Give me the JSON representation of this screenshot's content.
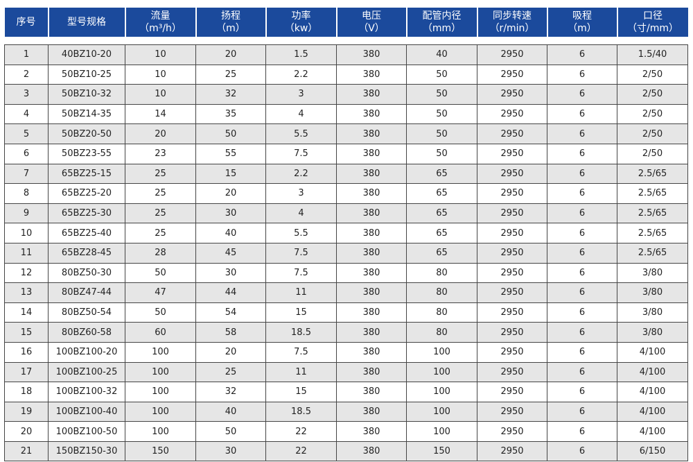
{
  "headers": [
    {
      "line1": "序号",
      "line2": ""
    },
    {
      "line1": "型号规格",
      "line2": ""
    },
    {
      "line1": "流量",
      "line2": "（m³/h）"
    },
    {
      "line1": "扬程",
      "line2": "（m）"
    },
    {
      "line1": "功率",
      "line2": "（kw）"
    },
    {
      "line1": "电压",
      "line2": "（V）"
    },
    {
      "line1": "配管内径",
      "line2": "（mm）"
    },
    {
      "line1": "同步转速",
      "line2": "（r/min）"
    },
    {
      "line1": "吸程",
      "line2": "（m）"
    },
    {
      "line1": "口径",
      "line2": "（寸/mm）"
    }
  ],
  "rows": [
    [
      "1",
      "40BZ10-20",
      "10",
      "20",
      "1.5",
      "380",
      "40",
      "2950",
      "6",
      "1.5/40"
    ],
    [
      "2",
      "50BZ10-25",
      "10",
      "25",
      "2.2",
      "380",
      "50",
      "2950",
      "6",
      "2/50"
    ],
    [
      "3",
      "50BZ10-32",
      "10",
      "32",
      "3",
      "380",
      "50",
      "2950",
      "6",
      "2/50"
    ],
    [
      "4",
      "50BZ14-35",
      "14",
      "35",
      "4",
      "380",
      "50",
      "2950",
      "6",
      "2/50"
    ],
    [
      "5",
      "50BZ20-50",
      "20",
      "50",
      "5.5",
      "380",
      "50",
      "2950",
      "6",
      "2/50"
    ],
    [
      "6",
      "50BZ23-55",
      "23",
      "55",
      "7.5",
      "380",
      "50",
      "2950",
      "6",
      "2/50"
    ],
    [
      "7",
      "65BZ25-15",
      "25",
      "15",
      "2.2",
      "380",
      "65",
      "2950",
      "6",
      "2.5/65"
    ],
    [
      "8",
      "65BZ25-20",
      "25",
      "20",
      "3",
      "380",
      "65",
      "2950",
      "6",
      "2.5/65"
    ],
    [
      "9",
      "65BZ25-30",
      "25",
      "30",
      "4",
      "380",
      "65",
      "2950",
      "6",
      "2.5/65"
    ],
    [
      "10",
      "65BZ25-40",
      "25",
      "40",
      "5.5",
      "380",
      "65",
      "2950",
      "6",
      "2.5/65"
    ],
    [
      "11",
      "65BZ28-45",
      "28",
      "45",
      "7.5",
      "380",
      "65",
      "2950",
      "6",
      "2.5/65"
    ],
    [
      "12",
      "80BZ50-30",
      "50",
      "30",
      "7.5",
      "380",
      "80",
      "2950",
      "6",
      "3/80"
    ],
    [
      "13",
      "80BZ47-44",
      "47",
      "44",
      "11",
      "380",
      "80",
      "2950",
      "6",
      "3/80"
    ],
    [
      "14",
      "80BZ50-54",
      "50",
      "54",
      "15",
      "380",
      "80",
      "2950",
      "6",
      "3/80"
    ],
    [
      "15",
      "80BZ60-58",
      "60",
      "58",
      "18.5",
      "380",
      "80",
      "2950",
      "6",
      "3/80"
    ],
    [
      "16",
      "100BZ100-20",
      "100",
      "20",
      "7.5",
      "380",
      "100",
      "2950",
      "6",
      "4/100"
    ],
    [
      "17",
      "100BZ100-25",
      "100",
      "25",
      "11",
      "380",
      "100",
      "2950",
      "6",
      "4/100"
    ],
    [
      "18",
      "100BZ100-32",
      "100",
      "32",
      "15",
      "380",
      "100",
      "2950",
      "6",
      "4/100"
    ],
    [
      "19",
      "100BZ100-40",
      "100",
      "40",
      "18.5",
      "380",
      "100",
      "2950",
      "6",
      "4/100"
    ],
    [
      "20",
      "100BZ100-50",
      "100",
      "50",
      "22",
      "380",
      "100",
      "2950",
      "6",
      "4/100"
    ],
    [
      "21",
      "150BZ150-30",
      "150",
      "30",
      "22",
      "380",
      "150",
      "2950",
      "6",
      "6/150"
    ]
  ],
  "colors": {
    "header_bg": "#1b4a9c",
    "header_text": "#ffffff",
    "row_shade": "#e6e6e6",
    "grid": "#444444"
  }
}
